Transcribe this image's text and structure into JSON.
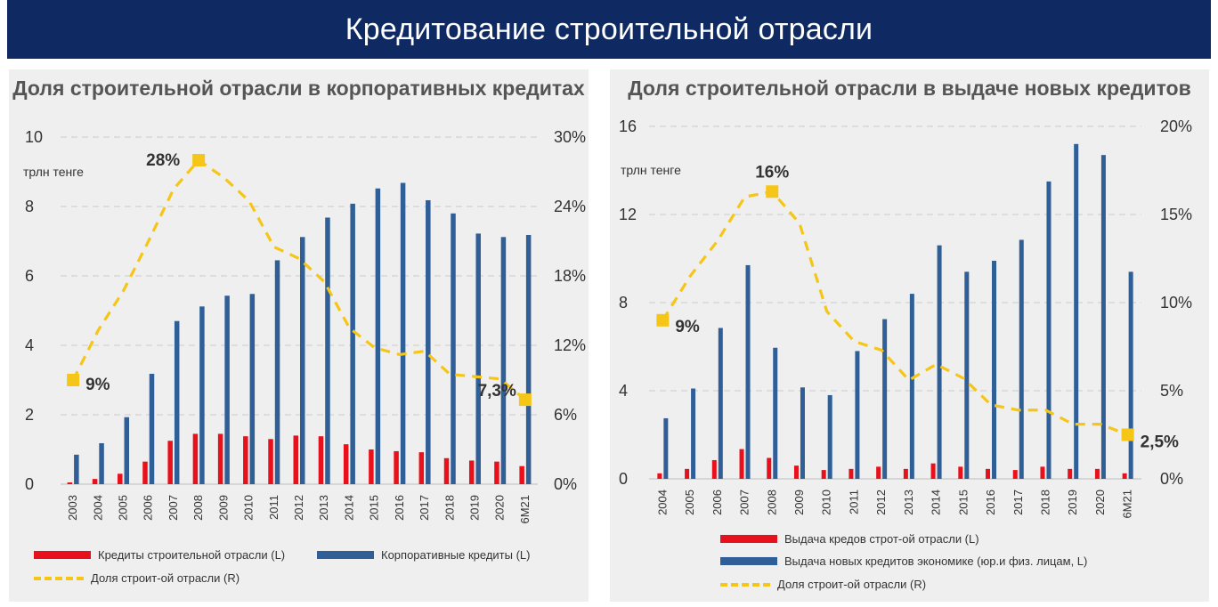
{
  "header": {
    "title": "Кредитование строительной отрасли"
  },
  "colors": {
    "banner": "#0f2a63",
    "construction": "#e8101a",
    "corporate": "#2f5f96",
    "share": "#f5c518"
  },
  "chart_data": [
    {
      "type": "bar",
      "title": "Доля строительной отрасли в корпоративных кредитах",
      "unit_label": "трлн тенге",
      "categories": [
        "2003",
        "2004",
        "2005",
        "2006",
        "2007",
        "2008",
        "2009",
        "2010",
        "2011",
        "2012",
        "2013",
        "2014",
        "2015",
        "2016",
        "2017",
        "2018",
        "2019",
        "2020",
        "6M21"
      ],
      "ylim": [
        0,
        10
      ],
      "yticks": [
        "0",
        "2",
        "4",
        "6",
        "8",
        "10"
      ],
      "y2lim": [
        0,
        30
      ],
      "y2ticks": [
        "0%",
        "6%",
        "12%",
        "18%",
        "24%",
        "30%"
      ],
      "series": [
        {
          "name": "Кредиты строительной отрасли (L)",
          "axis": "left",
          "kind": "bar",
          "values": [
            0.05,
            0.15,
            0.3,
            0.65,
            1.25,
            1.45,
            1.45,
            1.38,
            1.3,
            1.4,
            1.38,
            1.15,
            1.0,
            0.95,
            0.92,
            0.75,
            0.68,
            0.65,
            0.52
          ]
        },
        {
          "name": "Корпоративные кредиты (L)",
          "axis": "left",
          "kind": "bar",
          "values": [
            0.85,
            1.18,
            1.93,
            3.18,
            4.7,
            5.12,
            5.43,
            5.48,
            6.45,
            7.12,
            7.68,
            8.08,
            8.52,
            8.68,
            8.18,
            7.8,
            7.22,
            7.12,
            7.18
          ]
        },
        {
          "name": "Доля строит-ой отрасли (R)",
          "axis": "right",
          "kind": "line",
          "values": [
            9.0,
            13.3,
            16.7,
            21.0,
            25.5,
            28.0,
            26.5,
            24.5,
            20.5,
            19.5,
            17.5,
            13.5,
            11.8,
            11.2,
            11.5,
            9.5,
            9.3,
            9.1,
            7.3
          ]
        }
      ],
      "annotations": [
        {
          "index": 0,
          "label": "9%"
        },
        {
          "index": 5,
          "label": "28%"
        },
        {
          "index": 18,
          "label": "7,3%"
        }
      ]
    },
    {
      "type": "bar",
      "title": "Доля строительной отрасли в выдаче новых кредитов",
      "unit_label": "трлн тенге",
      "categories": [
        "2004",
        "2005",
        "2006",
        "2007",
        "2008",
        "2009",
        "2010",
        "2011",
        "2012",
        "2013",
        "2014",
        "2015",
        "2016",
        "2017",
        "2018",
        "2019",
        "2020",
        "6M21"
      ],
      "ylim": [
        0,
        16
      ],
      "yticks": [
        "0",
        "4",
        "8",
        "12",
        "16"
      ],
      "y2lim": [
        0,
        20
      ],
      "y2ticks": [
        "0%",
        "5%",
        "10%",
        "15%",
        "20%"
      ],
      "series": [
        {
          "name": "Выдача кредов строт-ой отрасли (L)",
          "axis": "left",
          "kind": "bar",
          "values": [
            0.25,
            0.45,
            0.85,
            1.35,
            0.95,
            0.6,
            0.4,
            0.45,
            0.55,
            0.45,
            0.7,
            0.55,
            0.45,
            0.4,
            0.55,
            0.45,
            0.45,
            0.25
          ]
        },
        {
          "name": "Выдача новых кредитов экономике (юр.и физ. лицам, L)",
          "axis": "left",
          "kind": "bar",
          "values": [
            2.75,
            4.1,
            6.85,
            9.7,
            5.95,
            4.15,
            3.8,
            5.8,
            7.25,
            8.4,
            10.6,
            9.4,
            9.9,
            10.85,
            13.5,
            15.2,
            14.7,
            9.4
          ]
        },
        {
          "name": "Доля строит-ой отрасли (R)",
          "axis": "right",
          "kind": "line",
          "values": [
            9.0,
            11.5,
            13.5,
            16.0,
            16.3,
            14.5,
            9.5,
            7.8,
            7.3,
            5.6,
            6.5,
            5.7,
            4.2,
            3.9,
            3.9,
            3.1,
            3.1,
            2.5
          ]
        }
      ],
      "annotations": [
        {
          "index": 0,
          "label": "9%"
        },
        {
          "index": 4,
          "label": "16%"
        },
        {
          "index": 17,
          "label": "2,5%"
        }
      ]
    }
  ]
}
